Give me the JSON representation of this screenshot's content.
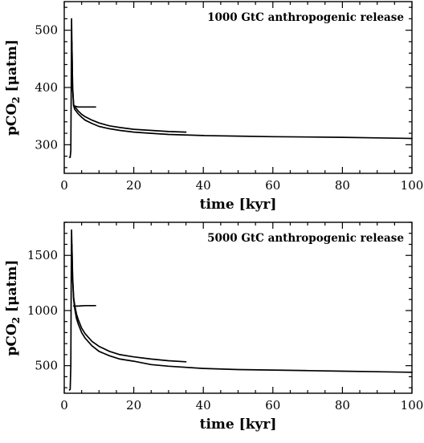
{
  "chart_data": [
    {
      "type": "line",
      "annotation": "1000 GtC anthropogenic release",
      "xlabel": "time [kyr]",
      "ylabel": "pCO",
      "ylabel_sub": "2",
      "ylabel_units": " [μatm]",
      "xlim": [
        0,
        100
      ],
      "ylim": [
        250,
        550
      ],
      "xticks": [
        0,
        20,
        40,
        60,
        80,
        100
      ],
      "yticks": [
        300,
        400,
        500
      ],
      "grid": false,
      "series": [
        {
          "x": [
            1.5,
            1.7,
            1.9,
            2.0,
            2.1,
            2.2,
            2.4,
            2.7,
            3.0,
            3.5,
            4,
            5,
            6,
            8,
            10,
            13,
            16,
            20,
            25,
            30,
            40,
            50,
            60,
            70,
            80,
            90,
            100
          ],
          "y": [
            278,
            278,
            290,
            400,
            520,
            480,
            400,
            368,
            362,
            358,
            354,
            348,
            343,
            337,
            332,
            328,
            325,
            322,
            320,
            318,
            316,
            315,
            314,
            313.5,
            313,
            312,
            311
          ]
        },
        {
          "x": [
            2.2,
            2.4,
            2.7,
            3.0,
            3.5,
            4,
            5,
            6,
            8,
            10,
            13,
            16,
            20,
            25,
            30,
            35
          ],
          "y": [
            480,
            400,
            370,
            366,
            363,
            359,
            353,
            349,
            343,
            338,
            333,
            330,
            327,
            325,
            323,
            322
          ]
        },
        {
          "x": [
            2.7,
            4,
            6,
            9
          ],
          "y": [
            368,
            366,
            366,
            366
          ]
        }
      ]
    },
    {
      "type": "line",
      "annotation": "5000 GtC anthropogenic release",
      "xlabel": "time [kyr]",
      "ylabel": "pCO",
      "ylabel_sub": "2",
      "ylabel_units": " [μatm]",
      "xlim": [
        0,
        100
      ],
      "ylim": [
        250,
        1800
      ],
      "xticks": [
        0,
        20,
        40,
        60,
        80,
        100
      ],
      "yticks": [
        500,
        1000,
        1500
      ],
      "grid": false,
      "series": [
        {
          "x": [
            1.5,
            1.7,
            1.9,
            2.0,
            2.1,
            2.2,
            2.4,
            2.7,
            3.0,
            3.5,
            4,
            5,
            6,
            8,
            10,
            13,
            16,
            20,
            25,
            30,
            40,
            50,
            60,
            70,
            80,
            90,
            100
          ],
          "y": [
            280,
            285,
            500,
            1300,
            1730,
            1600,
            1300,
            1100,
            1020,
            930,
            880,
            800,
            750,
            680,
            630,
            590,
            560,
            540,
            510,
            495,
            475,
            465,
            460,
            455,
            450,
            445,
            440
          ]
        },
        {
          "x": [
            2.2,
            2.4,
            2.7,
            3.0,
            3.5,
            4,
            5,
            6,
            8,
            10,
            13,
            16,
            20,
            25,
            30,
            35
          ],
          "y": [
            1600,
            1300,
            1120,
            1050,
            970,
            920,
            840,
            790,
            720,
            675,
            630,
            600,
            580,
            560,
            545,
            535
          ]
        },
        {
          "x": [
            2.7,
            4,
            6,
            9
          ],
          "y": [
            1040,
            1040,
            1045,
            1045
          ]
        }
      ]
    }
  ]
}
